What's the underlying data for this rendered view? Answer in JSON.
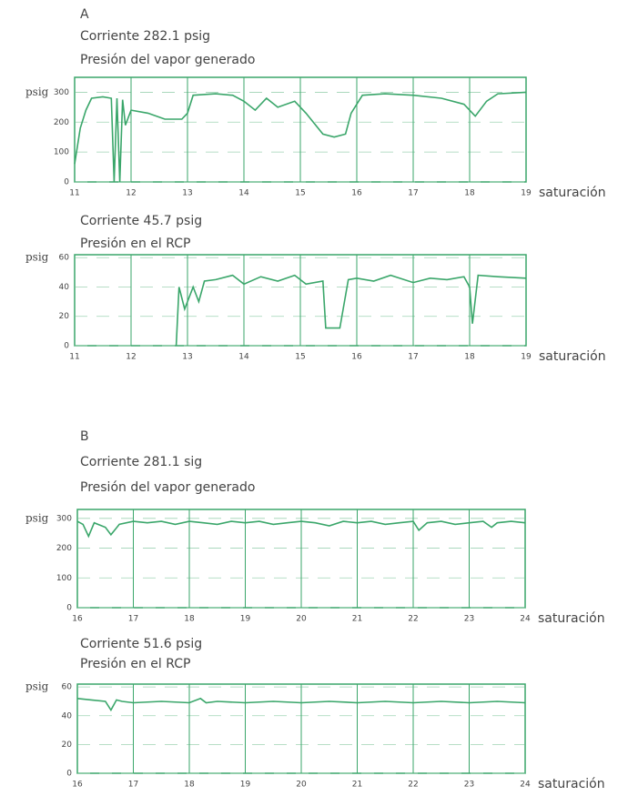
{
  "chart_data": [
    {
      "type": "line",
      "section": "A",
      "title": "Corriente 282.1 psig",
      "subtitle": "Presión del vapor generado",
      "ylabel": "psig",
      "xlabel": "saturación",
      "xlim": [
        11,
        19
      ],
      "xticks": [
        11,
        12,
        13,
        14,
        15,
        16,
        17,
        18,
        19
      ],
      "ylim": [
        0,
        350
      ],
      "yticks": [
        0,
        100,
        200,
        300
      ],
      "grid": true,
      "color": "#3aa66a",
      "x": [
        11,
        11.1,
        11.2,
        11.3,
        11.5,
        11.65,
        11.7,
        11.75,
        11.8,
        11.85,
        11.9,
        12,
        12.3,
        12.6,
        12.9,
        13,
        13.1,
        13.5,
        13.8,
        14,
        14.2,
        14.4,
        14.6,
        14.9,
        15.1,
        15.4,
        15.6,
        15.8,
        15.9,
        16.1,
        16.5,
        17,
        17.5,
        17.9,
        18.1,
        18.3,
        18.5,
        19
      ],
      "values": [
        60,
        180,
        240,
        280,
        285,
        280,
        0,
        280,
        0,
        275,
        190,
        240,
        230,
        210,
        210,
        230,
        290,
        295,
        290,
        270,
        240,
        280,
        250,
        270,
        230,
        160,
        150,
        160,
        230,
        290,
        295,
        290,
        280,
        260,
        220,
        270,
        295,
        300
      ]
    },
    {
      "type": "line",
      "title": "Corriente 45.7 psig",
      "subtitle": "Presión en el RCP",
      "ylabel": "psig",
      "xlabel": "saturación",
      "xlim": [
        11,
        19
      ],
      "xticks": [
        11,
        12,
        13,
        14,
        15,
        16,
        17,
        18,
        19
      ],
      "ylim": [
        0,
        62
      ],
      "yticks": [
        0,
        20,
        40,
        60
      ],
      "grid": true,
      "color": "#3aa66a",
      "x": [
        12.8,
        12.85,
        12.95,
        13.1,
        13.2,
        13.3,
        13.5,
        13.8,
        14,
        14.3,
        14.6,
        14.9,
        15.1,
        15.4,
        15.45,
        15.7,
        15.85,
        16,
        16.3,
        16.6,
        17,
        17.3,
        17.6,
        17.9,
        18,
        18.05,
        18.15,
        18.5,
        19
      ],
      "values": [
        0,
        40,
        25,
        40,
        30,
        44,
        45,
        48,
        42,
        47,
        44,
        48,
        42,
        44,
        12,
        12,
        45,
        46,
        44,
        48,
        43,
        46,
        45,
        47,
        40,
        15,
        48,
        47,
        46
      ]
    },
    {
      "type": "line",
      "section": "B",
      "title": "Corriente 281.1 sig",
      "subtitle": "Presión del vapor generado",
      "ylabel": "psig",
      "xlabel": "saturación",
      "xlim": [
        16,
        24
      ],
      "xticks": [
        16,
        17,
        18,
        19,
        20,
        21,
        22,
        23,
        24
      ],
      "ylim": [
        0,
        330
      ],
      "yticks": [
        0,
        100,
        200,
        300
      ],
      "grid": true,
      "color": "#3aa66a",
      "x": [
        16,
        16.1,
        16.2,
        16.3,
        16.5,
        16.6,
        16.75,
        17,
        17.25,
        17.5,
        17.75,
        18,
        18.25,
        18.5,
        18.75,
        19,
        19.25,
        19.5,
        19.75,
        20,
        20.25,
        20.5,
        20.75,
        21,
        21.25,
        21.5,
        21.75,
        22,
        22.1,
        22.25,
        22.5,
        22.75,
        23,
        23.25,
        23.4,
        23.5,
        23.75,
        24
      ],
      "values": [
        290,
        280,
        240,
        285,
        270,
        245,
        280,
        290,
        285,
        290,
        280,
        290,
        285,
        280,
        290,
        285,
        290,
        280,
        285,
        290,
        285,
        275,
        290,
        285,
        290,
        280,
        285,
        290,
        260,
        285,
        290,
        280,
        285,
        290,
        270,
        285,
        290,
        285
      ]
    },
    {
      "type": "line",
      "title": "Corriente 51.6 psig",
      "subtitle": "Presión en el RCP",
      "ylabel": "psig",
      "xlabel": "saturación",
      "xlim": [
        16,
        24
      ],
      "xticks": [
        16,
        17,
        18,
        19,
        20,
        21,
        22,
        23,
        24
      ],
      "ylim": [
        0,
        62
      ],
      "yticks": [
        0,
        20,
        40,
        60
      ],
      "grid": true,
      "color": "#3aa66a",
      "x": [
        16,
        16.25,
        16.5,
        16.6,
        16.7,
        16.8,
        17,
        17.5,
        18,
        18.2,
        18.3,
        18.5,
        19,
        19.5,
        20,
        20.5,
        21,
        21.5,
        22,
        22.5,
        23,
        23.5,
        24
      ],
      "values": [
        52,
        51,
        50,
        44,
        51,
        50,
        49,
        50,
        49,
        52,
        49,
        50,
        49,
        50,
        49,
        50,
        49,
        50,
        49,
        50,
        49,
        50,
        49
      ]
    }
  ]
}
